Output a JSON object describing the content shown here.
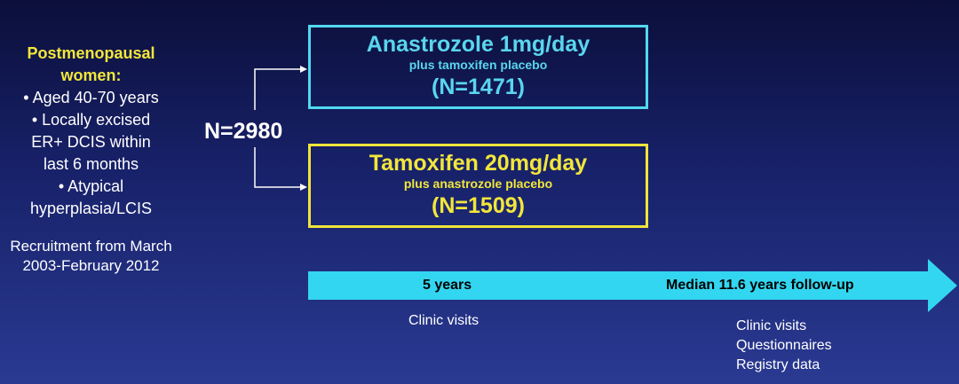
{
  "eligibility": {
    "title": "Postmenopausal women:",
    "criteria": [
      "• Aged 40-70 years",
      "• Locally excised ER+ DCIS within last 6 months",
      "• Atypical hyperplasia/LCIS"
    ],
    "recruitment": "Recruitment from March 2003-February 2012"
  },
  "total": "N=2980",
  "arms": [
    {
      "name": "Anastrozole 1mg/day",
      "sub": "plus tamoxifen placebo",
      "n": "(N=1471)",
      "color": "#52d8f0"
    },
    {
      "name": "Tamoxifen 20mg/day",
      "sub": "plus anastrozole placebo",
      "n": "(N=1509)",
      "color": "#f0e43a"
    }
  ],
  "timeline": {
    "color": "#33d6f0",
    "mark1": "5 years",
    "mark2": "Median 11.6 years follow-up",
    "notes1": [
      "Clinic visits"
    ],
    "notes2": [
      "Clinic visits",
      "Questionnaires",
      "Registry data"
    ]
  }
}
